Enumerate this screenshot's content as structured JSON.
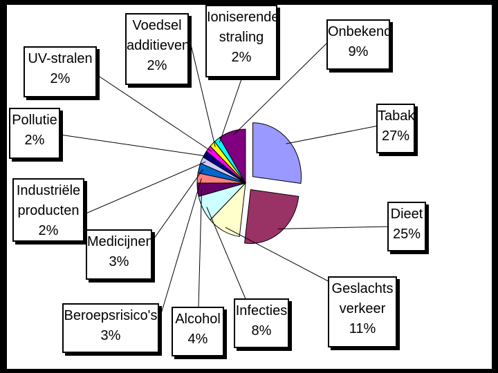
{
  "chart_data": {
    "type": "pie",
    "exploded": true,
    "legend": "none",
    "slices": [
      {
        "name": "Tabak",
        "value": 27,
        "label_lines": [
          "Tabak",
          "27%"
        ],
        "color": "#9999ff"
      },
      {
        "name": "Dieet",
        "value": 25,
        "label_lines": [
          "Dieet",
          "25%"
        ],
        "color": "#993366"
      },
      {
        "name": "Geslachts verkeer",
        "value": 11,
        "label_lines": [
          "Geslachts",
          "verkeer",
          "11%"
        ],
        "color": "#ffffcc"
      },
      {
        "name": "Infecties",
        "value": 8,
        "label_lines": [
          "Infecties",
          "8%"
        ],
        "color": "#ccffff"
      },
      {
        "name": "Alcohol",
        "value": 4,
        "label_lines": [
          "Alcohol",
          "4%"
        ],
        "color": "#660066"
      },
      {
        "name": "Beroepsrisico's",
        "value": 3,
        "label_lines": [
          "Beroepsrisico's",
          "3%"
        ],
        "color": "#ff8080"
      },
      {
        "name": "Medicijnen",
        "value": 3,
        "label_lines": [
          "Medicijnen",
          "3%"
        ],
        "color": "#0066cc"
      },
      {
        "name": "Industriële producten",
        "value": 2,
        "label_lines": [
          "Industriële",
          "producten",
          "2%"
        ],
        "color": "#ccccff"
      },
      {
        "name": "Pollutie",
        "value": 2,
        "label_lines": [
          "Pollutie",
          "2%"
        ],
        "color": "#000080"
      },
      {
        "name": "UV-stralen",
        "value": 2,
        "label_lines": [
          "UV-stralen",
          "2%"
        ],
        "color": "#ff00ff"
      },
      {
        "name": "Voedsel additieven",
        "value": 2,
        "label_lines": [
          "Voedsel",
          "additieven",
          "2%"
        ],
        "color": "#ffff00"
      },
      {
        "name": "Ioniserende straling",
        "value": 2,
        "label_lines": [
          "Ioniserende",
          "straling",
          "2%"
        ],
        "color": "#00ffff"
      },
      {
        "name": "Onbekend",
        "value": 9,
        "label_lines": [
          "Onbekend",
          "9%"
        ],
        "color": "#800080"
      }
    ]
  }
}
